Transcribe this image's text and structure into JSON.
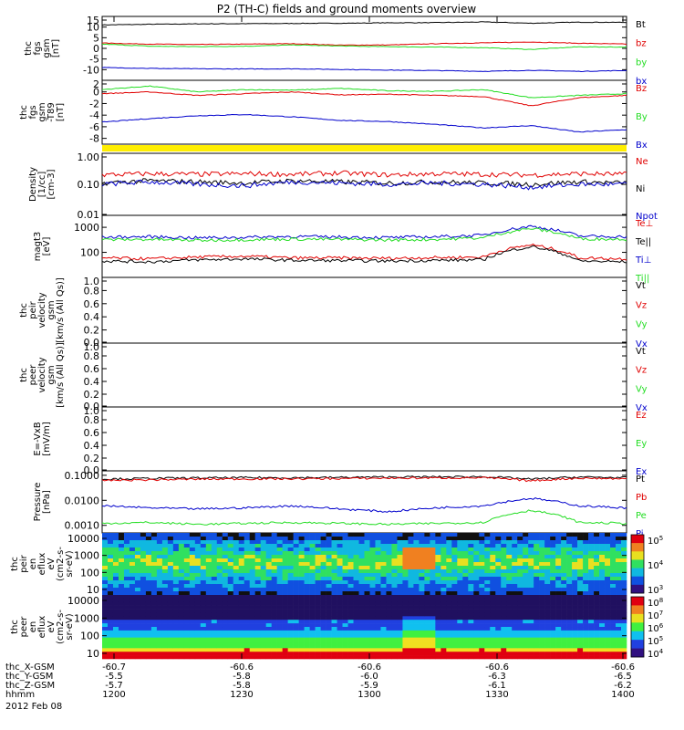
{
  "title": "P2 (TH-C) fields and ground moments overview",
  "date": "2012 Feb 08",
  "colors": {
    "black": "#000000",
    "red": "#e00000",
    "green": "#22dd22",
    "blue": "#0000cc",
    "yellow": "#ffee00"
  },
  "chart_data": [
    {
      "type": "line",
      "id": "fgs_gsm",
      "ylabel": [
        "thc",
        "fgs",
        "gsm",
        "[nT]"
      ],
      "ylim": [
        -15,
        15
      ],
      "yticks": [
        15,
        10,
        5,
        0,
        -5,
        -10
      ],
      "series": [
        {
          "name": "Bt",
          "color": "#000000",
          "values": [
            11,
            11.3,
            11.5,
            11.6,
            11.7,
            11.8,
            12,
            12.1,
            12.4,
            11.8,
            12.3,
            12.2
          ]
        },
        {
          "name": "bz",
          "color": "#e00000",
          "values": [
            2.5,
            2,
            1.8,
            2,
            2.2,
            1.5,
            1.6,
            2.2,
            2.6,
            3,
            2.4,
            2
          ]
        },
        {
          "name": "by",
          "color": "#22dd22",
          "values": [
            2,
            1,
            0.8,
            1,
            1.6,
            1.1,
            0.8,
            0.6,
            0.3,
            -0.5,
            0.7,
            0.6
          ]
        },
        {
          "name": "bx",
          "color": "#0000cc",
          "values": [
            -9,
            -9.4,
            -9.6,
            -9.7,
            -9.6,
            -9.9,
            -10.2,
            -10.4,
            -10.8,
            -10.3,
            -10.8,
            -10.4
          ]
        }
      ]
    },
    {
      "type": "line",
      "id": "fgs_gsm_t89",
      "ylabel": [
        "thc",
        "fgs",
        "gsm",
        "-T89",
        "[nT]"
      ],
      "ylim": [
        -9,
        2
      ],
      "yticks": [
        2,
        0,
        -2,
        -4,
        -6,
        -8
      ],
      "series": [
        {
          "name": "Bz",
          "color": "#e00000",
          "values": [
            -0.3,
            0,
            -0.6,
            -0.3,
            0,
            -0.5,
            -0.4,
            -0.6,
            -0.8,
            -2.4,
            -1,
            -0.6
          ]
        },
        {
          "name": "By",
          "color": "#22dd22",
          "values": [
            0.4,
            1,
            0,
            0.4,
            0.3,
            0.6,
            0.2,
            0.1,
            0.4,
            -1,
            -0.6,
            -0.3
          ]
        },
        {
          "name": "Bx",
          "color": "#0000cc",
          "values": [
            -5.2,
            -4.6,
            -4.1,
            -3.9,
            -4.3,
            -4.9,
            -5.1,
            -5.6,
            -6.2,
            -5.8,
            -6.9,
            -6.5
          ]
        }
      ]
    },
    {
      "type": "line",
      "id": "density",
      "ylabel": [
        "Density",
        "[1/cc]",
        "[cm-3]"
      ],
      "ylim": [
        0.01,
        1.0
      ],
      "scale": "log",
      "yticks": [
        "1.00",
        "0.10",
        "0.01"
      ],
      "series": [
        {
          "name": "Ne",
          "color": "#e00000",
          "values": [
            0.2,
            0.22,
            0.21,
            0.22,
            0.21,
            0.23,
            0.2,
            0.22,
            0.21,
            0.2,
            0.22,
            0.21
          ]
        },
        {
          "name": "Ni",
          "color": "#000000",
          "values": [
            0.11,
            0.13,
            0.12,
            0.11,
            0.13,
            0.12,
            0.11,
            0.12,
            0.11,
            0.1,
            0.12,
            0.11
          ]
        },
        {
          "name": "Npot",
          "color": "#0000cc",
          "values": [
            0.1,
            0.12,
            0.1,
            0.09,
            0.12,
            0.11,
            0.1,
            0.11,
            0.1,
            0.08,
            0.1,
            0.1
          ]
        }
      ]
    },
    {
      "type": "line",
      "id": "temperature",
      "ylabel": [
        "magt3",
        "[eV]"
      ],
      "ylim": [
        10,
        3000
      ],
      "scale": "log",
      "yticks": [
        "1000",
        "100"
      ],
      "series": [
        {
          "name": "Te⊥",
          "color": "#e00000",
          "values": [
            60,
            55,
            65,
            70,
            60,
            60,
            58,
            62,
            65,
            200,
            60,
            55
          ]
        },
        {
          "name": "Te||",
          "color": "#000000",
          "values": [
            45,
            42,
            50,
            55,
            48,
            47,
            45,
            48,
            50,
            170,
            45,
            42
          ]
        },
        {
          "name": "Ti⊥",
          "color": "#0000cc",
          "values": [
            400,
            420,
            380,
            400,
            430,
            410,
            390,
            420,
            480,
            1100,
            450,
            420
          ]
        },
        {
          "name": "Ti||",
          "color": "#22dd22",
          "values": [
            320,
            330,
            300,
            320,
            340,
            330,
            310,
            330,
            380,
            900,
            350,
            330
          ]
        }
      ]
    },
    {
      "type": "line",
      "id": "peir_velocity",
      "ylabel": [
        "thc",
        "peir",
        "velocity",
        "gsm",
        "[km/s (All Qs)]"
      ],
      "ylim": [
        0,
        1
      ],
      "yticks": [
        "1.0",
        "0.8",
        "0.6",
        "0.4",
        "0.2",
        "0.0"
      ],
      "series": [
        {
          "name": "Vt",
          "color": "#000000",
          "values": []
        },
        {
          "name": "Vz",
          "color": "#e00000",
          "values": []
        },
        {
          "name": "Vy",
          "color": "#22dd22",
          "values": []
        },
        {
          "name": "Vx",
          "color": "#0000cc",
          "values": []
        }
      ]
    },
    {
      "type": "line",
      "id": "peer_velocity",
      "ylabel": [
        "thc",
        "peer",
        "velocity",
        "gsm",
        "[km/s (All Qs)]"
      ],
      "ylim": [
        0,
        1
      ],
      "yticks": [
        "1.0",
        "0.8",
        "0.6",
        "0.4",
        "0.2",
        "0.0"
      ],
      "series": [
        {
          "name": "Vt",
          "color": "#000000",
          "values": []
        },
        {
          "name": "Vz",
          "color": "#e00000",
          "values": []
        },
        {
          "name": "Vy",
          "color": "#22dd22",
          "values": []
        },
        {
          "name": "Vx",
          "color": "#0000cc",
          "values": []
        }
      ]
    },
    {
      "type": "line",
      "id": "e_vxb",
      "ylabel": [
        "E=-VxB",
        "[mV/m]"
      ],
      "ylim": [
        0,
        1
      ],
      "yticks": [
        "1.0",
        "0.8",
        "0.6",
        "0.4",
        "0.2",
        "0.0"
      ],
      "series": [
        {
          "name": "Ez",
          "color": "#e00000",
          "values": []
        },
        {
          "name": "Ey",
          "color": "#22dd22",
          "values": []
        },
        {
          "name": "Ex",
          "color": "#0000cc",
          "values": []
        }
      ]
    },
    {
      "type": "line",
      "id": "pressure",
      "ylabel": [
        "Pressure",
        "[nPa]"
      ],
      "ylim": [
        0.0005,
        0.15
      ],
      "scale": "log",
      "yticks": [
        "0.1000",
        "0.0100",
        "0.0010"
      ],
      "series": [
        {
          "name": "Pt",
          "color": "#000000",
          "values": [
            0.07,
            0.075,
            0.078,
            0.08,
            0.08,
            0.082,
            0.085,
            0.086,
            0.088,
            0.07,
            0.085,
            0.08
          ]
        },
        {
          "name": "Pb",
          "color": "#e00000",
          "values": [
            0.062,
            0.066,
            0.07,
            0.072,
            0.072,
            0.074,
            0.077,
            0.078,
            0.08,
            0.06,
            0.077,
            0.072
          ]
        },
        {
          "name": "Pe",
          "color": "#22dd22",
          "values": [
            0.0012,
            0.0013,
            0.0011,
            0.0012,
            0.0013,
            0.0012,
            0.0011,
            0.0012,
            0.0013,
            0.004,
            0.0013,
            0.0012
          ]
        },
        {
          "name": "Pi",
          "color": "#0000cc",
          "values": [
            0.006,
            0.005,
            0.0045,
            0.005,
            0.006,
            0.0045,
            0.0035,
            0.005,
            0.006,
            0.012,
            0.006,
            0.005
          ]
        }
      ]
    },
    {
      "type": "heatmap",
      "id": "peir_spec",
      "ylabel": [
        "thc",
        "peir",
        "en",
        "eflux",
        "eV",
        "(cm2-s-",
        "sr-eV)"
      ],
      "ylim": [
        10,
        20000
      ],
      "scale": "log",
      "yticks": [
        "10000",
        "1000",
        "100",
        "10"
      ],
      "colorbar": {
        "ticks": [
          "10^5",
          "10^4",
          "10^3"
        ]
      }
    },
    {
      "type": "heatmap",
      "id": "peer_spec",
      "ylabel": [
        "thc",
        "peer",
        "en",
        "eflux",
        "eV",
        "(cm2-s-",
        "sr-eV)"
      ],
      "ylim": [
        10,
        20000
      ],
      "scale": "log",
      "yticks": [
        "10000",
        "1000",
        "100",
        "10"
      ],
      "colorbar": {
        "ticks": [
          "10^8",
          "10^7",
          "10^6",
          "10^5",
          "10^4"
        ]
      }
    }
  ],
  "xaxis": {
    "rows": [
      {
        "label": "thc_X-GSM",
        "values": [
          "-60.7",
          "-60.6",
          "-60.6",
          "-60.6",
          "-60.6"
        ]
      },
      {
        "label": "thc_Y-GSM",
        "values": [
          "-5.5",
          "-5.8",
          "-6.0",
          "-6.3",
          "-6.5"
        ]
      },
      {
        "label": "thc_Z-GSM",
        "values": [
          "-5.7",
          "-5.8",
          "-5.9",
          "-6.1",
          "-6.2"
        ]
      },
      {
        "label": "hhmm",
        "values": [
          "1200",
          "1230",
          "1300",
          "1330",
          "1400"
        ]
      }
    ]
  }
}
